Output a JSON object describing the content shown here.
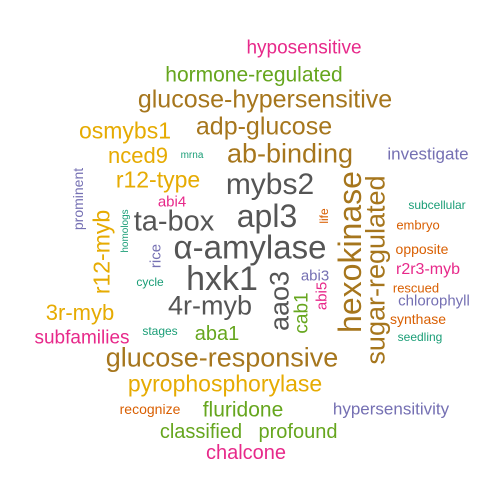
{
  "palette": {
    "magenta": "#e7298a",
    "green": "#66a61e",
    "brown": "#a6761d",
    "gold": "#e6ab02",
    "dark": "#555555",
    "purple": "#7570b3",
    "teal": "#1b9e77",
    "orange": "#d95f02"
  },
  "words": {
    "hyposensitive": "hyposensitive",
    "hormone_regulated": "hormone-regulated",
    "glucose_hypersensitive": "glucose-hypersensitive",
    "osmybs1": "osmybs1",
    "adp_glucose": "adp-glucose",
    "nced9": "nced9",
    "mrna": "mrna",
    "ab_binding": "ab-binding",
    "investigate": "investigate",
    "r12_type": "r12-type",
    "mybs2": "mybs2",
    "prominent": "prominent",
    "abi4": "abi4",
    "subcellular": "subcellular",
    "ta_box": "ta-box",
    "apl3": "apl3",
    "homologs": "homologs",
    "life": "life",
    "embryo": "embryo",
    "r12_myb": "r12-myb",
    "rice": "rice",
    "alpha_amylase": "α-amylase",
    "hexokinase": "hexokinase",
    "sugar_regulated": "sugar-regulated",
    "opposite": "opposite",
    "cycle": "cycle",
    "hxk1": "hxk1",
    "aao3": "aao3",
    "abi3": "abi3",
    "abi5": "abi5",
    "r2r3_myb": "r2r3-myb",
    "rescued": "rescued",
    "chlorophyll": "chlorophyll",
    "myb_3r": "3r-myb",
    "myb_4r": "4r-myb",
    "cab1": "cab1",
    "synthase": "synthase",
    "subfamilies": "subfamilies",
    "stages": "stages",
    "aba1": "aba1",
    "seedling": "seedling",
    "glucose_responsive": "glucose-responsive",
    "pyrophosphorylase": "pyrophosphorylase",
    "recognize": "recognize",
    "fluridone": "fluridone",
    "hypersensitivity": "hypersensitivity",
    "classified": "classified",
    "profound": "profound",
    "chalcone": "chalcone"
  }
}
